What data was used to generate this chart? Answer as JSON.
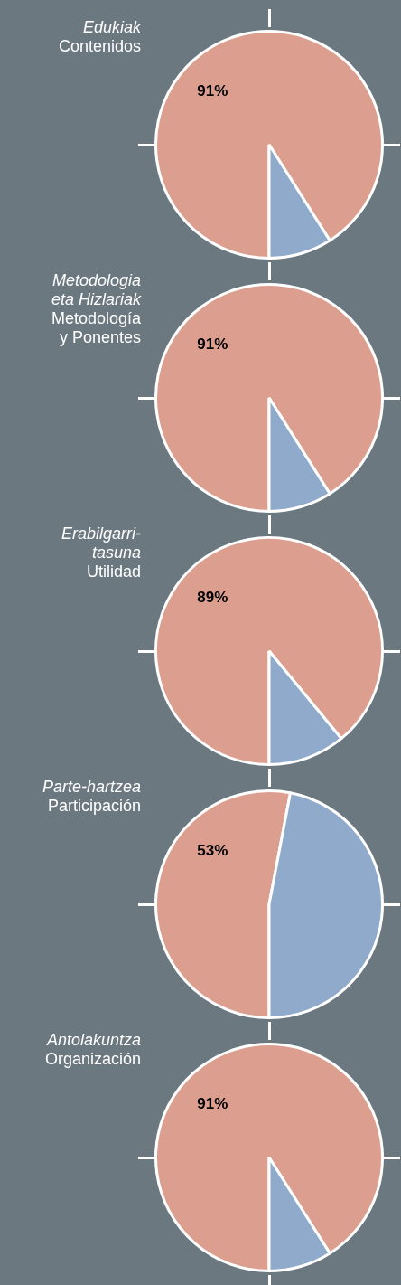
{
  "chart_data": [
    {
      "type": "pie",
      "title": "Edukiak",
      "subtitle": "Contenidos",
      "categories": [
        null,
        null
      ],
      "values": [
        91,
        9
      ],
      "colors": [
        "#dc9e8e",
        "#90aacc"
      ],
      "value_labels": [
        "91%",
        null
      ],
      "legend": false
    },
    {
      "type": "pie",
      "title": "Metodologia\neta Hizlariak",
      "subtitle": "Metodología\ny Ponentes",
      "categories": [
        null,
        null
      ],
      "values": [
        91,
        9
      ],
      "colors": [
        "#dc9e8e",
        "#90aacc"
      ],
      "value_labels": [
        "91%",
        null
      ],
      "legend": false
    },
    {
      "type": "pie",
      "title": "Erabilgarri-\ntasuna",
      "subtitle": "Utilidad",
      "categories": [
        null,
        null
      ],
      "values": [
        89,
        11
      ],
      "colors": [
        "#dc9e8e",
        "#90aacc"
      ],
      "value_labels": [
        "89%",
        null
      ],
      "legend": false
    },
    {
      "type": "pie",
      "title": "Parte-hartzea",
      "subtitle": "Participación",
      "categories": [
        null,
        null
      ],
      "values": [
        53,
        47
      ],
      "colors": [
        "#dc9e8e",
        "#90aacc"
      ],
      "value_labels": [
        "53%",
        null
      ],
      "legend": false
    },
    {
      "type": "pie",
      "title": "Antolakuntza",
      "subtitle": "Organización",
      "categories": [
        null,
        null
      ],
      "values": [
        91,
        9
      ],
      "colors": [
        "#dc9e8e",
        "#90aacc"
      ],
      "value_labels": [
        "91%",
        null
      ],
      "legend": false
    }
  ]
}
